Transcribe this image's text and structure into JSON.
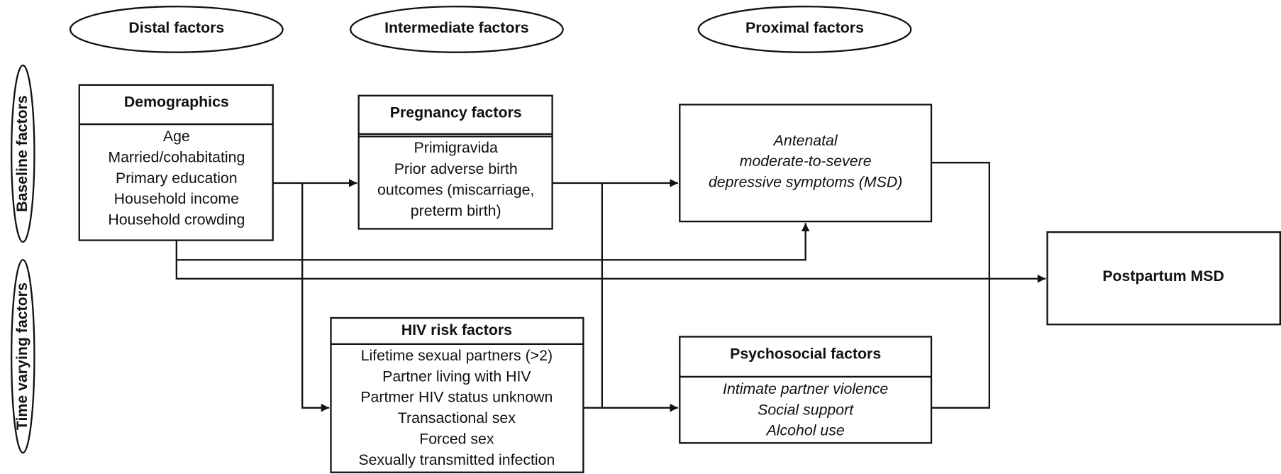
{
  "headers": [
    "Distal factors",
    "Intermediate factors",
    "Proximal factors"
  ],
  "side_labels": [
    "Baseline factors",
    "Time varying factors"
  ],
  "nodes": [
    {
      "title": "Demographics",
      "items": [
        "Age",
        "Married/cohabitating",
        "Primary education",
        "Household income",
        "Household crowding"
      ]
    },
    {
      "title": "Pregnancy factors",
      "items": [
        "Primigravida",
        "Prior adverse birth",
        "outcomes (miscarriage,",
        "preterm birth)"
      ]
    },
    {
      "items": [
        "Antenatal",
        "moderate-to-severe",
        "depressive symptoms (MSD)"
      ]
    },
    {
      "title": "Postpartum MSD"
    },
    {
      "title": "HIV risk factors",
      "items": [
        "Lifetime sexual partners (>2)",
        "Partner living with HIV",
        "Partmer HIV status unknown",
        "Transactional sex",
        "Forced sex",
        "Sexually transmitted infection"
      ]
    },
    {
      "title": "Psychosocial factors",
      "items": [
        "Intimate partner violence",
        "Social support",
        "Alcohol use"
      ]
    }
  ]
}
